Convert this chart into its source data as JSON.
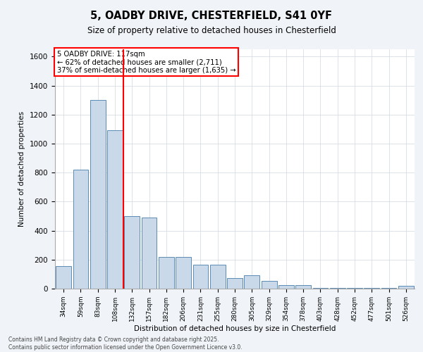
{
  "title_line1": "5, OADBY DRIVE, CHESTERFIELD, S41 0YF",
  "title_line2": "Size of property relative to detached houses in Chesterfield",
  "xlabel": "Distribution of detached houses by size in Chesterfield",
  "ylabel": "Number of detached properties",
  "categories": [
    "34sqm",
    "59sqm",
    "83sqm",
    "108sqm",
    "132sqm",
    "157sqm",
    "182sqm",
    "206sqm",
    "231sqm",
    "255sqm",
    "280sqm",
    "305sqm",
    "329sqm",
    "354sqm",
    "378sqm",
    "403sqm",
    "428sqm",
    "452sqm",
    "477sqm",
    "501sqm",
    "526sqm"
  ],
  "values": [
    155,
    820,
    1300,
    1090,
    500,
    490,
    220,
    220,
    165,
    165,
    75,
    90,
    55,
    25,
    25,
    5,
    5,
    5,
    5,
    5,
    20
  ],
  "bar_color": "#c9d9ea",
  "bar_edge_color": "#5a8ab5",
  "vline_x_index": 3,
  "vline_color": "red",
  "annotation_title": "5 OADBY DRIVE: 117sqm",
  "annotation_line1": "← 62% of detached houses are smaller (2,711)",
  "annotation_line2": "37% of semi-detached houses are larger (1,635) →",
  "ylim": [
    0,
    1650
  ],
  "yticks": [
    0,
    200,
    400,
    600,
    800,
    1000,
    1200,
    1400,
    1600
  ],
  "footer_line1": "Contains HM Land Registry data © Crown copyright and database right 2025.",
  "footer_line2": "Contains public sector information licensed under the Open Government Licence v3.0.",
  "bg_color": "#f0f4f8",
  "plot_bg_color": "#ffffff",
  "grid_color": "#d0d8e0"
}
